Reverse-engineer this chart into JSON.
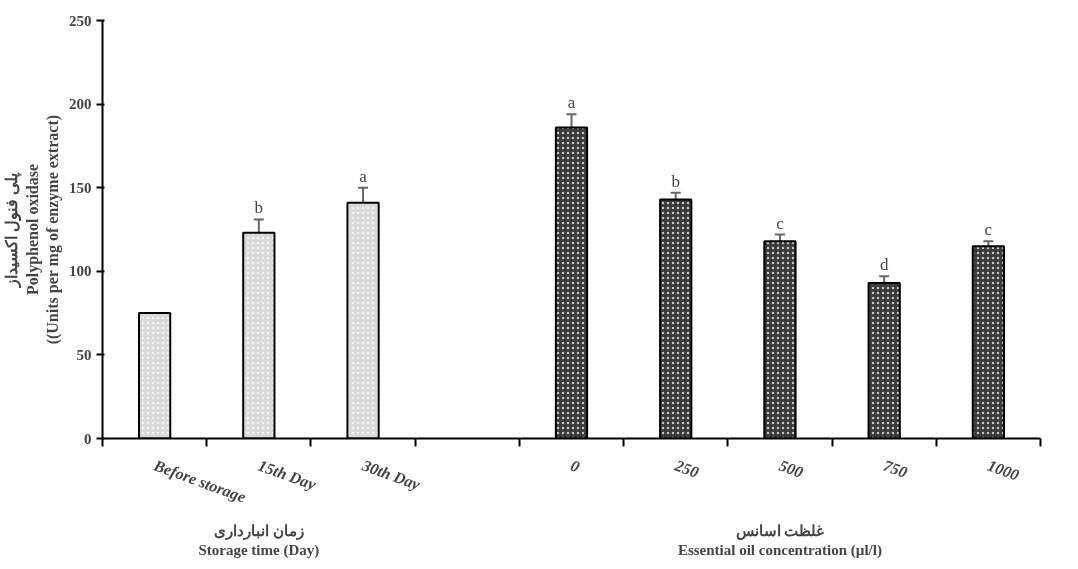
{
  "chart_data": {
    "type": "bar",
    "categories": [
      "Before storage",
      "15th Day",
      "30th Day",
      null,
      "0",
      "250",
      "500",
      "750",
      "1000"
    ],
    "values": [
      75,
      123,
      141,
      null,
      186,
      143,
      118,
      93,
      115
    ],
    "errors": [
      null,
      8,
      9,
      null,
      8,
      4,
      4,
      4,
      3
    ],
    "value_labels": [
      null,
      "b",
      "a",
      null,
      "a",
      "b",
      "c",
      "d",
      "c"
    ],
    "colors": [
      "#d9d9d9",
      "#d9d9d9",
      "#d9d9d9",
      null,
      "#3a3a3a",
      "#3a3a3a",
      "#3a3a3a",
      "#3a3a3a",
      "#3a3a3a"
    ],
    "ylabel": "پلی فنول اکسیداز\nPolyphenol oxidase\n((Units per mg of enzyme extract)",
    "annotations": [
      "زمان انبارداری\nStorage time (Day)",
      "غلظت اسانس\nEssential oil concentration (µl/l)"
    ],
    "ylim": [
      0,
      250
    ],
    "yticks": [
      0,
      50,
      100,
      150,
      200,
      250
    ],
    "grid": false
  }
}
